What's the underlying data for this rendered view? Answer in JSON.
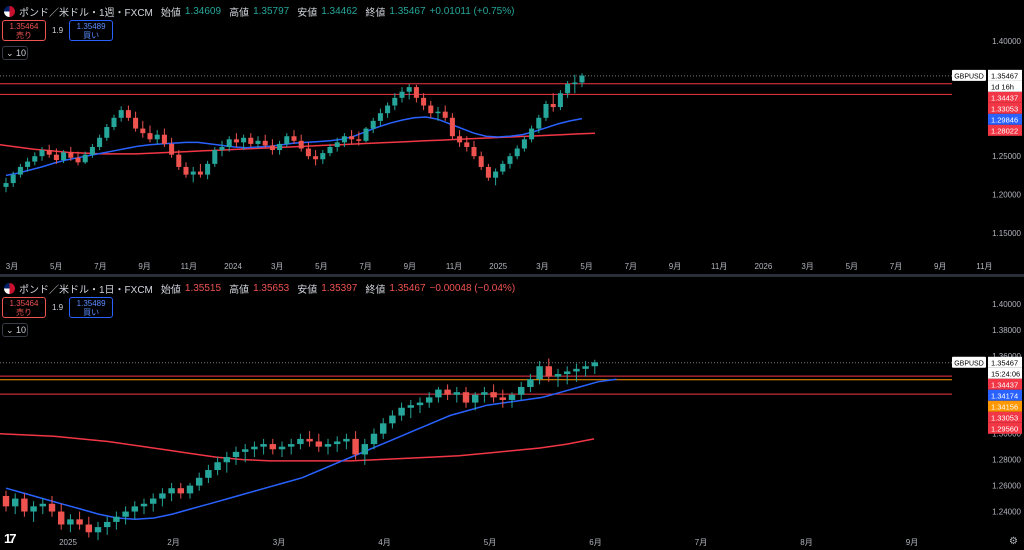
{
  "charts": [
    {
      "id": "weekly",
      "title": "ポンド／米ドル・1週・FXCM",
      "ohlc": {
        "open_label": "始値",
        "open": "1.34609",
        "high_label": "高値",
        "high": "1.35797",
        "low_label": "安値",
        "low": "1.34462",
        "close_label": "終値",
        "close": "1.35467",
        "change": "+0.01011 (+0.75%)",
        "change_dir": "up"
      },
      "sell": {
        "price": "1.35464",
        "label": "売り"
      },
      "buy": {
        "price": "1.35489",
        "label": "買い"
      },
      "spread": "1.9",
      "collapse": "10",
      "price_ticks": [
        "1.40000",
        "1.35000",
        "1.30000",
        "1.25000",
        "1.20000",
        "1.15000"
      ],
      "time_ticks": [
        "3月",
        "5月",
        "7月",
        "9月",
        "11月",
        "2024",
        "3月",
        "5月",
        "7月",
        "9月",
        "11月",
        "2025",
        "3月",
        "5月",
        "7月",
        "9月",
        "11月",
        "2026",
        "3月",
        "5月",
        "7月",
        "9月",
        "11月"
      ],
      "price_labels": [
        {
          "text": "GBPUSD",
          "kind": "symbol"
        },
        {
          "text": "1.35467",
          "kind": "last"
        },
        {
          "text": "1d 16h",
          "kind": "timer"
        },
        {
          "text": "1.34437",
          "kind": "red"
        },
        {
          "text": "1.33053",
          "kind": "red"
        },
        {
          "text": "1.29846",
          "kind": "blue"
        },
        {
          "text": "1.28022",
          "kind": "red"
        }
      ],
      "horizontal_levels": [
        1.34437,
        1.33053
      ],
      "y_range": [
        1.12,
        1.43
      ],
      "candles": [
        [
          1.21,
          1.222,
          1.203,
          1.215
        ],
        [
          1.215,
          1.23,
          1.21,
          1.226
        ],
        [
          1.226,
          1.24,
          1.222,
          1.236
        ],
        [
          1.236,
          1.248,
          1.23,
          1.243
        ],
        [
          1.243,
          1.255,
          1.238,
          1.25
        ],
        [
          1.25,
          1.262,
          1.244,
          1.258
        ],
        [
          1.258,
          1.265,
          1.248,
          1.252
        ],
        [
          1.252,
          1.26,
          1.24,
          1.245
        ],
        [
          1.245,
          1.258,
          1.241,
          1.255
        ],
        [
          1.255,
          1.262,
          1.244,
          1.248
        ],
        [
          1.248,
          1.256,
          1.238,
          1.242
        ],
        [
          1.242,
          1.256,
          1.24,
          1.252
        ],
        [
          1.252,
          1.266,
          1.248,
          1.262
        ],
        [
          1.262,
          1.278,
          1.258,
          1.274
        ],
        [
          1.274,
          1.292,
          1.27,
          1.288
        ],
        [
          1.288,
          1.304,
          1.284,
          1.3
        ],
        [
          1.3,
          1.315,
          1.295,
          1.31
        ],
        [
          1.31,
          1.316,
          1.296,
          1.3
        ],
        [
          1.3,
          1.308,
          1.282,
          1.286
        ],
        [
          1.286,
          1.296,
          1.274,
          1.28
        ],
        [
          1.28,
          1.29,
          1.268,
          1.272
        ],
        [
          1.272,
          1.284,
          1.266,
          1.278
        ],
        [
          1.278,
          1.286,
          1.262,
          1.266
        ],
        [
          1.266,
          1.274,
          1.248,
          1.252
        ],
        [
          1.252,
          1.258,
          1.232,
          1.236
        ],
        [
          1.236,
          1.242,
          1.222,
          1.226
        ],
        [
          1.226,
          1.236,
          1.216,
          1.23
        ],
        [
          1.23,
          1.24,
          1.222,
          1.226
        ],
        [
          1.226,
          1.244,
          1.22,
          1.24
        ],
        [
          1.24,
          1.262,
          1.236,
          1.258
        ],
        [
          1.258,
          1.27,
          1.25,
          1.262
        ],
        [
          1.262,
          1.276,
          1.256,
          1.272
        ],
        [
          1.272,
          1.28,
          1.262,
          1.268
        ],
        [
          1.268,
          1.278,
          1.258,
          1.274
        ],
        [
          1.274,
          1.28,
          1.262,
          1.266
        ],
        [
          1.266,
          1.276,
          1.26,
          1.27
        ],
        [
          1.27,
          1.278,
          1.26,
          1.264
        ],
        [
          1.264,
          1.272,
          1.252,
          1.258
        ],
        [
          1.258,
          1.27,
          1.252,
          1.266
        ],
        [
          1.266,
          1.28,
          1.262,
          1.276
        ],
        [
          1.276,
          1.284,
          1.266,
          1.27
        ],
        [
          1.27,
          1.278,
          1.256,
          1.26
        ],
        [
          1.26,
          1.268,
          1.246,
          1.25
        ],
        [
          1.25,
          1.258,
          1.238,
          1.246
        ],
        [
          1.246,
          1.258,
          1.24,
          1.254
        ],
        [
          1.254,
          1.266,
          1.25,
          1.262
        ],
        [
          1.262,
          1.274,
          1.256,
          1.268
        ],
        [
          1.268,
          1.28,
          1.262,
          1.276
        ],
        [
          1.276,
          1.284,
          1.266,
          1.272
        ],
        [
          1.272,
          1.282,
          1.264,
          1.27
        ],
        [
          1.27,
          1.288,
          1.268,
          1.286
        ],
        [
          1.286,
          1.3,
          1.28,
          1.296
        ],
        [
          1.296,
          1.312,
          1.29,
          1.306
        ],
        [
          1.306,
          1.32,
          1.3,
          1.316
        ],
        [
          1.316,
          1.332,
          1.31,
          1.326
        ],
        [
          1.326,
          1.34,
          1.32,
          1.334
        ],
        [
          1.334,
          1.344,
          1.324,
          1.34
        ],
        [
          1.34,
          1.343,
          1.32,
          1.326
        ],
        [
          1.326,
          1.332,
          1.31,
          1.316
        ],
        [
          1.316,
          1.322,
          1.3,
          1.306
        ],
        [
          1.306,
          1.314,
          1.296,
          1.308
        ],
        [
          1.308,
          1.316,
          1.296,
          1.3
        ],
        [
          1.3,
          1.306,
          1.272,
          1.276
        ],
        [
          1.276,
          1.284,
          1.262,
          1.268
        ],
        [
          1.268,
          1.276,
          1.256,
          1.262
        ],
        [
          1.262,
          1.27,
          1.246,
          1.25
        ],
        [
          1.25,
          1.256,
          1.232,
          1.236
        ],
        [
          1.236,
          1.24,
          1.218,
          1.222
        ],
        [
          1.222,
          1.234,
          1.212,
          1.23
        ],
        [
          1.23,
          1.244,
          1.226,
          1.24
        ],
        [
          1.24,
          1.254,
          1.234,
          1.25
        ],
        [
          1.25,
          1.264,
          1.246,
          1.26
        ],
        [
          1.26,
          1.276,
          1.256,
          1.272
        ],
        [
          1.272,
          1.29,
          1.268,
          1.286
        ],
        [
          1.286,
          1.304,
          1.28,
          1.3
        ],
        [
          1.3,
          1.322,
          1.296,
          1.318
        ],
        [
          1.318,
          1.332,
          1.308,
          1.314
        ],
        [
          1.314,
          1.336,
          1.31,
          1.332
        ],
        [
          1.332,
          1.348,
          1.326,
          1.344
        ],
        [
          1.344,
          1.356,
          1.332,
          1.346
        ],
        [
          1.346,
          1.358,
          1.34,
          1.355
        ]
      ],
      "ma_blue": [
        1.225,
        1.228,
        1.232,
        1.236,
        1.241,
        1.245,
        1.248,
        1.251,
        1.254,
        1.257,
        1.26,
        1.263,
        1.265,
        1.266,
        1.267,
        1.268,
        1.268,
        1.266,
        1.264,
        1.262,
        1.261,
        1.262,
        1.263,
        1.265,
        1.267,
        1.268,
        1.269,
        1.27,
        1.272,
        1.276,
        1.282,
        1.288,
        1.293,
        1.297,
        1.3,
        1.301,
        1.298,
        1.292,
        1.286,
        1.28,
        1.276,
        1.275,
        1.276,
        1.278,
        1.282,
        1.287,
        1.292,
        1.296,
        1.299
      ],
      "ma_red": [
        1.265,
        1.262,
        1.259,
        1.257,
        1.255,
        1.254,
        1.253,
        1.253,
        1.253,
        1.254,
        1.255,
        1.256,
        1.257,
        1.258,
        1.259,
        1.26,
        1.261,
        1.262,
        1.263,
        1.264,
        1.265,
        1.266,
        1.267,
        1.268,
        1.269,
        1.27,
        1.271,
        1.272,
        1.273,
        1.274,
        1.275,
        1.276,
        1.277,
        1.278,
        1.279,
        1.28
      ]
    },
    {
      "id": "daily",
      "title": "ポンド／米ドル・1日・FXCM",
      "ohlc": {
        "open_label": "始値",
        "open": "1.35515",
        "high_label": "高値",
        "high": "1.35653",
        "low_label": "安値",
        "low": "1.35397",
        "close_label": "終値",
        "close": "1.35467",
        "change": "−0.00048 (−0.04%)",
        "change_dir": "down"
      },
      "sell": {
        "price": "1.35464",
        "label": "売り"
      },
      "buy": {
        "price": "1.35489",
        "label": "買い"
      },
      "spread": "1.9",
      "collapse": "10",
      "price_ticks": [
        "1.40000",
        "1.38000",
        "1.36000",
        "1.34000",
        "1.32000",
        "1.30000",
        "1.28000",
        "1.26000",
        "1.24000"
      ],
      "time_ticks": [
        "2025",
        "2月",
        "3月",
        "4月",
        "5月",
        "6月",
        "7月",
        "8月",
        "9月"
      ],
      "price_labels": [
        {
          "text": "GBPUSD",
          "kind": "symbol"
        },
        {
          "text": "1.35467",
          "kind": "last"
        },
        {
          "text": "15:24:06",
          "kind": "timer"
        },
        {
          "text": "1.34437",
          "kind": "red"
        },
        {
          "text": "1.34174",
          "kind": "blue"
        },
        {
          "text": "1.34156",
          "kind": "orange"
        },
        {
          "text": "1.33053",
          "kind": "red"
        },
        {
          "text": "1.29560",
          "kind": "red"
        }
      ],
      "horizontal_levels": [
        1.34437,
        1.34156,
        1.33053
      ],
      "y_range": [
        1.225,
        1.41
      ],
      "candles": [
        [
          1.252,
          1.256,
          1.24,
          1.244
        ],
        [
          1.244,
          1.254,
          1.238,
          1.25
        ],
        [
          1.25,
          1.254,
          1.236,
          1.24
        ],
        [
          1.24,
          1.248,
          1.232,
          1.244
        ],
        [
          1.244,
          1.25,
          1.238,
          1.246
        ],
        [
          1.246,
          1.252,
          1.236,
          1.24
        ],
        [
          1.24,
          1.246,
          1.226,
          1.23
        ],
        [
          1.23,
          1.238,
          1.224,
          1.234
        ],
        [
          1.234,
          1.24,
          1.226,
          1.23
        ],
        [
          1.23,
          1.236,
          1.22,
          1.224
        ],
        [
          1.224,
          1.232,
          1.218,
          1.228
        ],
        [
          1.228,
          1.236,
          1.222,
          1.232
        ],
        [
          1.232,
          1.24,
          1.226,
          1.236
        ],
        [
          1.236,
          1.244,
          1.23,
          1.24
        ],
        [
          1.24,
          1.248,
          1.234,
          1.244
        ],
        [
          1.244,
          1.25,
          1.238,
          1.246
        ],
        [
          1.246,
          1.254,
          1.24,
          1.25
        ],
        [
          1.25,
          1.258,
          1.244,
          1.254
        ],
        [
          1.254,
          1.262,
          1.248,
          1.258
        ],
        [
          1.258,
          1.262,
          1.25,
          1.254
        ],
        [
          1.254,
          1.262,
          1.25,
          1.26
        ],
        [
          1.26,
          1.27,
          1.256,
          1.266
        ],
        [
          1.266,
          1.276,
          1.262,
          1.272
        ],
        [
          1.272,
          1.282,
          1.268,
          1.278
        ],
        [
          1.278,
          1.286,
          1.27,
          1.282
        ],
        [
          1.282,
          1.29,
          1.276,
          1.286
        ],
        [
          1.286,
          1.292,
          1.278,
          1.288
        ],
        [
          1.288,
          1.294,
          1.282,
          1.29
        ],
        [
          1.29,
          1.296,
          1.284,
          1.292
        ],
        [
          1.292,
          1.296,
          1.284,
          1.288
        ],
        [
          1.288,
          1.294,
          1.282,
          1.29
        ],
        [
          1.29,
          1.296,
          1.284,
          1.292
        ],
        [
          1.292,
          1.3,
          1.288,
          1.296
        ],
        [
          1.296,
          1.302,
          1.29,
          1.294
        ],
        [
          1.294,
          1.3,
          1.286,
          1.29
        ],
        [
          1.29,
          1.296,
          1.284,
          1.292
        ],
        [
          1.292,
          1.298,
          1.286,
          1.294
        ],
        [
          1.294,
          1.3,
          1.288,
          1.296
        ],
        [
          1.296,
          1.302,
          1.28,
          1.284
        ],
        [
          1.284,
          1.296,
          1.276,
          1.292
        ],
        [
          1.292,
          1.304,
          1.288,
          1.3
        ],
        [
          1.3,
          1.312,
          1.296,
          1.308
        ],
        [
          1.308,
          1.318,
          1.304,
          1.314
        ],
        [
          1.314,
          1.324,
          1.31,
          1.32
        ],
        [
          1.32,
          1.326,
          1.312,
          1.322
        ],
        [
          1.322,
          1.328,
          1.316,
          1.324
        ],
        [
          1.324,
          1.332,
          1.32,
          1.328
        ],
        [
          1.328,
          1.336,
          1.324,
          1.334
        ],
        [
          1.334,
          1.338,
          1.326,
          1.33
        ],
        [
          1.33,
          1.336,
          1.324,
          1.332
        ],
        [
          1.332,
          1.336,
          1.32,
          1.324
        ],
        [
          1.324,
          1.332,
          1.318,
          1.33
        ],
        [
          1.33,
          1.336,
          1.324,
          1.332
        ],
        [
          1.332,
          1.338,
          1.324,
          1.328
        ],
        [
          1.328,
          1.334,
          1.32,
          1.326
        ],
        [
          1.326,
          1.332,
          1.32,
          1.33
        ],
        [
          1.33,
          1.34,
          1.326,
          1.336
        ],
        [
          1.336,
          1.346,
          1.332,
          1.342
        ],
        [
          1.342,
          1.356,
          1.338,
          1.352
        ],
        [
          1.352,
          1.358,
          1.34,
          1.344
        ],
        [
          1.344,
          1.35,
          1.336,
          1.346
        ],
        [
          1.346,
          1.352,
          1.338,
          1.348
        ],
        [
          1.348,
          1.354,
          1.34,
          1.35
        ],
        [
          1.35,
          1.356,
          1.344,
          1.352
        ],
        [
          1.352,
          1.357,
          1.346,
          1.355
        ]
      ],
      "ma_blue": [
        1.258,
        1.254,
        1.25,
        1.246,
        1.242,
        1.238,
        1.235,
        1.234,
        1.235,
        1.238,
        1.242,
        1.246,
        1.25,
        1.254,
        1.258,
        1.262,
        1.266,
        1.272,
        1.278,
        1.284,
        1.29,
        1.296,
        1.302,
        1.308,
        1.314,
        1.318,
        1.322,
        1.324,
        1.326,
        1.328,
        1.332,
        1.336,
        1.34,
        1.342
      ],
      "ma_red": [
        1.3,
        1.299,
        1.298,
        1.296,
        1.294,
        1.291,
        1.288,
        1.285,
        1.282,
        1.28,
        1.279,
        1.279,
        1.279,
        1.279,
        1.28,
        1.281,
        1.282,
        1.283,
        1.285,
        1.287,
        1.289,
        1.292,
        1.296
      ]
    }
  ]
}
